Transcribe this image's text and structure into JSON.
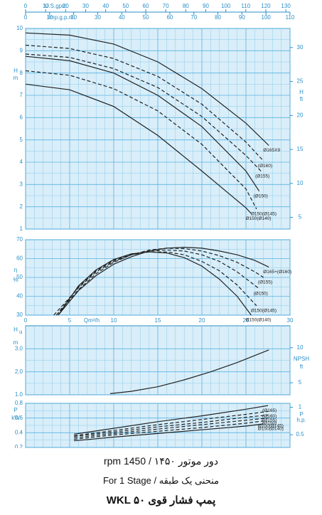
{
  "chart_data": [
    {
      "type": "line",
      "y_label": "H",
      "y_unit": "m",
      "y2_label": "H",
      "y2_unit": "ft",
      "xlim": [
        0,
        30
      ],
      "xticks": [
        0,
        5,
        10,
        15,
        20,
        25,
        30
      ],
      "ylim": [
        1,
        10
      ],
      "yticks": [
        1,
        2,
        3,
        4,
        5,
        6,
        7,
        8,
        9,
        10
      ],
      "y2lim": [
        3.281,
        32.81
      ],
      "y2ticks": [
        5,
        10,
        15,
        20,
        25,
        30
      ],
      "top_axes": [
        {
          "label": "U.S.gpm",
          "lim": [
            0,
            132.09
          ],
          "ticks": [
            0,
            10,
            20,
            30,
            40,
            50,
            60,
            70,
            80,
            90,
            100,
            110,
            120,
            130
          ]
        },
        {
          "label": "Imp.g.p.m.",
          "lim": [
            0,
            110
          ],
          "ticks": [
            0,
            10,
            20,
            30,
            40,
            50,
            60,
            70,
            80,
            90,
            100,
            110
          ]
        }
      ],
      "series": [
        {
          "name": "Ø165X9",
          "dash": false,
          "x": [
            0,
            5,
            10,
            15,
            20,
            25,
            27.6
          ],
          "values": [
            9.8,
            9.7,
            9.3,
            8.5,
            7.3,
            5.75,
            4.75
          ]
        },
        {
          "name": "(Ø160)",
          "dash": true,
          "x": [
            0,
            5,
            10,
            15,
            20,
            25,
            27
          ],
          "values": [
            9.25,
            9.1,
            8.65,
            7.85,
            6.6,
            4.9,
            4.05
          ]
        },
        {
          "name": "(Ø155)",
          "dash": true,
          "x": [
            0,
            5,
            10,
            15,
            20,
            25,
            26.7
          ],
          "values": [
            8.85,
            8.7,
            8.2,
            7.35,
            6.05,
            4.3,
            3.6
          ]
        },
        {
          "name": "(Ø150)",
          "dash": false,
          "x": [
            0,
            5,
            10,
            15,
            20,
            25,
            26.5
          ],
          "values": [
            8.75,
            8.55,
            8.0,
            7.0,
            5.6,
            3.6,
            2.7
          ]
        },
        {
          "name": "Ø150(Ø145)",
          "dash": true,
          "x": [
            0,
            5,
            10,
            15,
            20,
            25,
            26.2
          ],
          "values": [
            8.1,
            7.9,
            7.3,
            6.3,
            4.8,
            2.8,
            1.9
          ]
        },
        {
          "name": "Ø150(Ø140)",
          "dash": false,
          "x": [
            0,
            5,
            10,
            15,
            20,
            25,
            25.6
          ],
          "values": [
            7.5,
            7.25,
            6.5,
            5.2,
            3.6,
            1.95,
            1.7
          ]
        }
      ]
    },
    {
      "type": "line",
      "y_label": "η",
      "y_unit": "%",
      "x_label": "Qm³/h",
      "xlim": [
        0,
        30
      ],
      "xticks": [
        0,
        5,
        10,
        15,
        20,
        25,
        30
      ],
      "ylim": [
        30,
        70
      ],
      "yticks": [
        30,
        40,
        50,
        60,
        70
      ],
      "series": [
        {
          "name": "Ø165+(Ø160)",
          "dash": false,
          "x": [
            3.7,
            6,
            8,
            10,
            12,
            14,
            16,
            18,
            20,
            22,
            24,
            26,
            27.6
          ],
          "values": [
            30,
            43,
            51,
            57,
            61,
            64,
            65.5,
            66,
            65.5,
            64,
            62,
            59,
            55.5
          ]
        },
        {
          "name": "(Ø155)",
          "dash": true,
          "x": [
            3.5,
            6,
            8,
            10,
            12,
            14,
            16,
            18,
            20,
            22,
            24,
            26,
            27
          ],
          "values": [
            30,
            43.5,
            52,
            58,
            62,
            64.5,
            65.5,
            65.3,
            64,
            61.5,
            58,
            53,
            50
          ]
        },
        {
          "name": "(Ø150)",
          "dash": true,
          "x": [
            3.2,
            6,
            8,
            10,
            12,
            14,
            16,
            18,
            20,
            22,
            24,
            26.5
          ],
          "values": [
            30,
            44.5,
            53,
            58.5,
            62,
            64,
            64.5,
            64,
            62,
            58.5,
            53,
            44
          ]
        },
        {
          "name": "Ø150(Ø145)",
          "dash": true,
          "x": [
            3.5,
            6,
            8,
            10,
            12,
            14,
            16,
            18,
            20,
            22,
            24,
            26.2
          ],
          "values": [
            30,
            45,
            53.5,
            59,
            62,
            63.5,
            63.5,
            62,
            58.5,
            53.5,
            46,
            35
          ]
        },
        {
          "name": "Ø150(Ø140)",
          "dash": false,
          "x": [
            3.7,
            6,
            8,
            10,
            12,
            14,
            16,
            18,
            20,
            22,
            24,
            25.6
          ],
          "values": [
            30,
            45.5,
            54,
            59.5,
            62.5,
            63.5,
            63,
            60.5,
            56,
            49,
            40,
            30
          ]
        }
      ]
    },
    {
      "type": "line",
      "y_label": "H",
      "y_label_sub": "u",
      "y_unit": "m",
      "y2_label": "NPSH",
      "y2_unit": "ft",
      "xlim": [
        0,
        30
      ],
      "xticks": [
        0,
        5,
        10,
        15,
        20,
        25,
        30
      ],
      "ylim": [
        1,
        4
      ],
      "yticks": [
        {
          "value": 1,
          "label": "1.0"
        },
        {
          "value": 2,
          "label": "2.0"
        },
        {
          "value": 3,
          "label": "3.0"
        }
      ],
      "y2lim": [
        3.281,
        13.123
      ],
      "y2ticks": [
        5,
        10
      ],
      "series": [
        {
          "dash": false,
          "x": [
            9.6,
            12,
            15,
            18,
            21,
            24,
            27.6
          ],
          "values": [
            1.05,
            1.15,
            1.35,
            1.65,
            2.0,
            2.4,
            2.95
          ]
        }
      ]
    },
    {
      "type": "line",
      "y_label": "P",
      "y_unit": "kW",
      "y2_label": "P",
      "y2_unit": "h.p.",
      "xlim": [
        0,
        30
      ],
      "xticks": [
        0,
        5,
        10,
        15,
        20,
        25,
        30
      ],
      "ylim": [
        0.2,
        0.8
      ],
      "yticks": [
        0.2,
        0.4,
        0.6,
        0.8
      ],
      "y2lim": [
        0.268,
        1.073
      ],
      "y2ticks": [
        0.5,
        1
      ],
      "series": [
        {
          "name": "(Ø165)",
          "dash": false,
          "x": [
            5.5,
            10,
            15,
            20,
            25,
            27.5
          ],
          "values": [
            0.38,
            0.46,
            0.55,
            0.63,
            0.72,
            0.77
          ]
        },
        {
          "name": "(Ø160)",
          "dash": true,
          "x": [
            5.5,
            10,
            15,
            20,
            25,
            27.5
          ],
          "values": [
            0.36,
            0.43,
            0.51,
            0.58,
            0.65,
            0.69
          ]
        },
        {
          "name": "(Ø155)",
          "dash": true,
          "x": [
            5.5,
            10,
            15,
            20,
            25,
            27.5
          ],
          "values": [
            0.35,
            0.41,
            0.48,
            0.54,
            0.61,
            0.64
          ]
        },
        {
          "name": "(Ø150)",
          "dash": true,
          "x": [
            5.5,
            10,
            15,
            20,
            25,
            27.5
          ],
          "values": [
            0.33,
            0.39,
            0.45,
            0.51,
            0.57,
            0.6
          ]
        },
        {
          "name": "Ø150(Ø145)",
          "dash": true,
          "x": [
            5.5,
            10,
            15,
            20,
            25,
            27
          ],
          "values": [
            0.31,
            0.37,
            0.42,
            0.47,
            0.53,
            0.56
          ]
        },
        {
          "name": "Ø150(Ø140)",
          "dash": false,
          "x": [
            5.5,
            10,
            15,
            20,
            25,
            27
          ],
          "values": [
            0.29,
            0.34,
            0.39,
            0.44,
            0.49,
            0.52
          ]
        }
      ]
    }
  ],
  "footer": {
    "line1": "دور موتور ۱۴۵۰ / 1450 rpm",
    "line2": "منحنی یک طبقه / For 1 Stage",
    "line3": "پمپ فشار قوی ۵۰ WKL"
  }
}
